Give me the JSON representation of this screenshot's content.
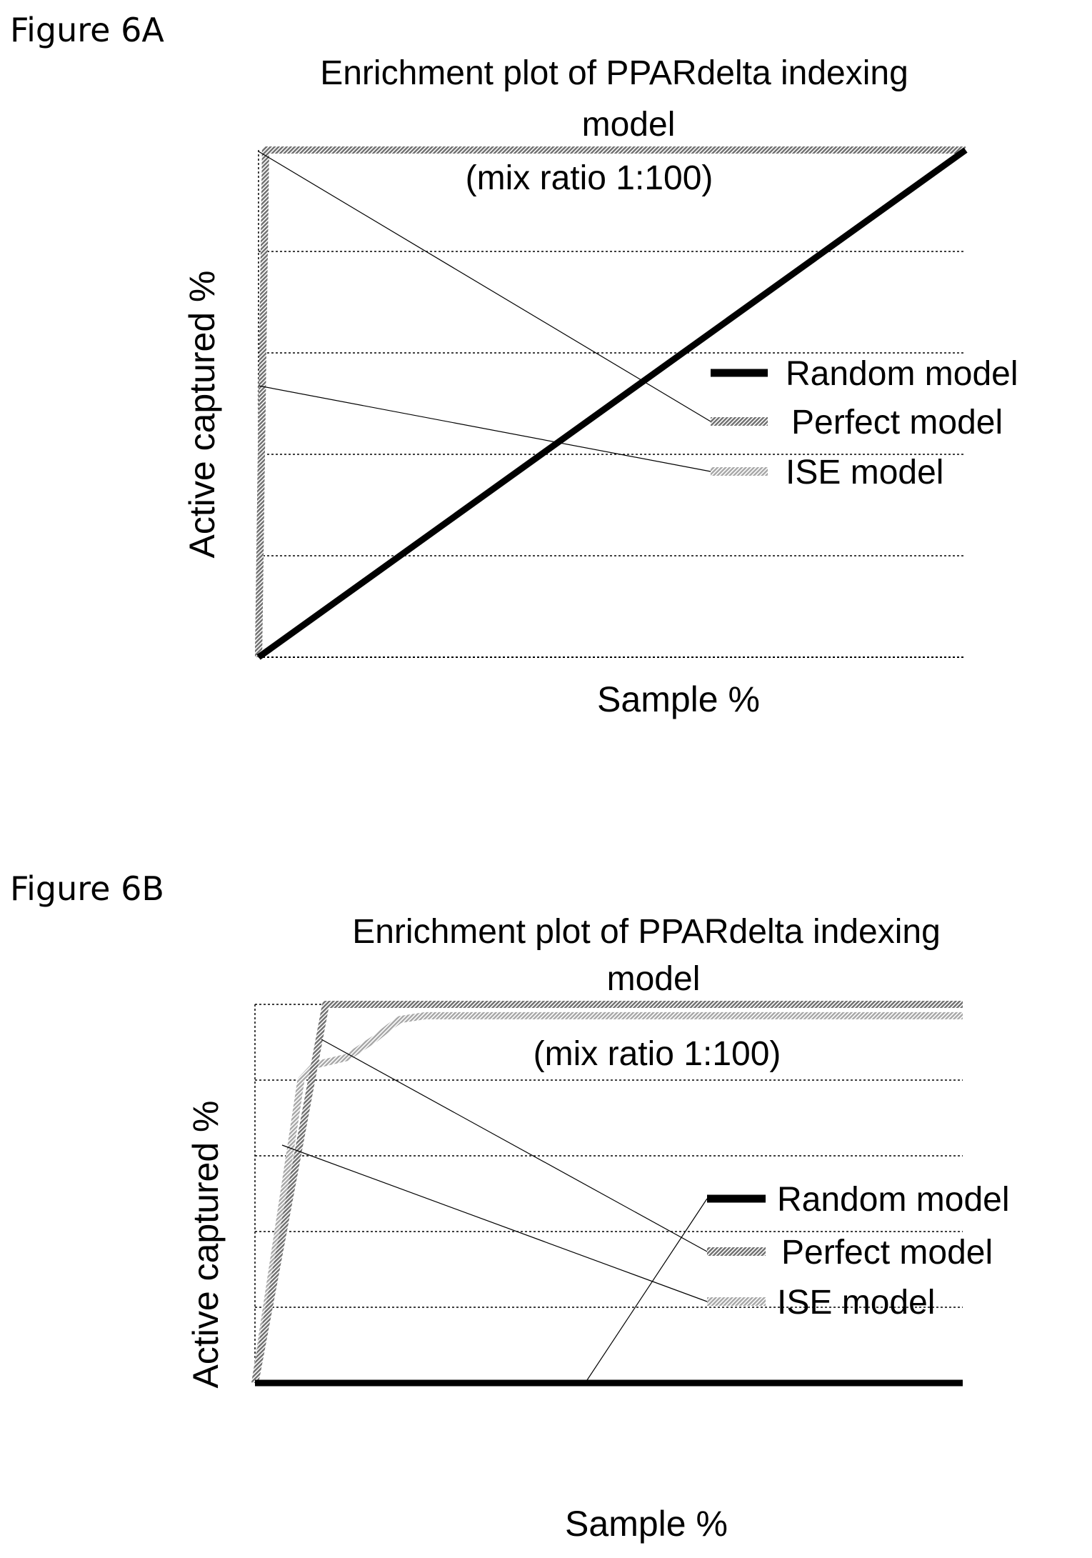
{
  "figures": [
    {
      "label": "Figure 6A",
      "legend_lines": [
        "Random model",
        "Perfect model",
        "ISE model"
      ]
    },
    {
      "label": "Figure 6B",
      "legend_lines": [
        "Random model",
        "Perfect model",
        "ISE model"
      ]
    }
  ],
  "colors": {
    "random": "#000000",
    "perfect": "#6e6e6e",
    "ise": "#a6a6a6"
  },
  "chart_data": [
    {
      "type": "line",
      "title_lines": [
        "Enrichment plot of PPARdelta indexing",
        "model",
        "(mix ratio 1:100)"
      ],
      "xlabel": "Sample %",
      "ylabel": "Active captured %",
      "xlim": [
        0,
        100
      ],
      "ylim": [
        0,
        100
      ],
      "grid": true,
      "gridlines_y": [
        20,
        40,
        60,
        80
      ],
      "legend": "right",
      "series": [
        {
          "name": "Random model",
          "x": [
            0,
            100
          ],
          "y": [
            0,
            100
          ]
        },
        {
          "name": "Perfect model",
          "x": [
            0,
            1,
            100
          ],
          "y": [
            0,
            100,
            100
          ]
        },
        {
          "name": "ISE model",
          "x": [
            0,
            1,
            100
          ],
          "y": [
            0,
            100,
            100
          ]
        }
      ]
    },
    {
      "type": "line",
      "title_lines": [
        "Enrichment plot of PPARdelta indexing",
        "model",
        "(mix ratio 1:100)"
      ],
      "xlabel": "Sample %",
      "ylabel": "Active captured %",
      "xlim": [
        0,
        100
      ],
      "ylim": [
        0,
        100
      ],
      "grid": true,
      "gridlines_y": [
        20,
        40,
        60,
        80,
        100
      ],
      "legend": "right",
      "series": [
        {
          "name": "Random model",
          "x": [
            0,
            100
          ],
          "y": [
            0,
            0
          ]
        },
        {
          "name": "Perfect model",
          "x": [
            0,
            10,
            100
          ],
          "y": [
            0,
            100,
            100
          ]
        },
        {
          "name": "ISE model",
          "x": [
            0,
            6.5,
            8.5,
            13,
            17,
            19,
            20.5,
            24,
            50,
            100
          ],
          "y": [
            0,
            80,
            84,
            86,
            91,
            94,
            96,
            97,
            97,
            97
          ]
        }
      ]
    }
  ]
}
